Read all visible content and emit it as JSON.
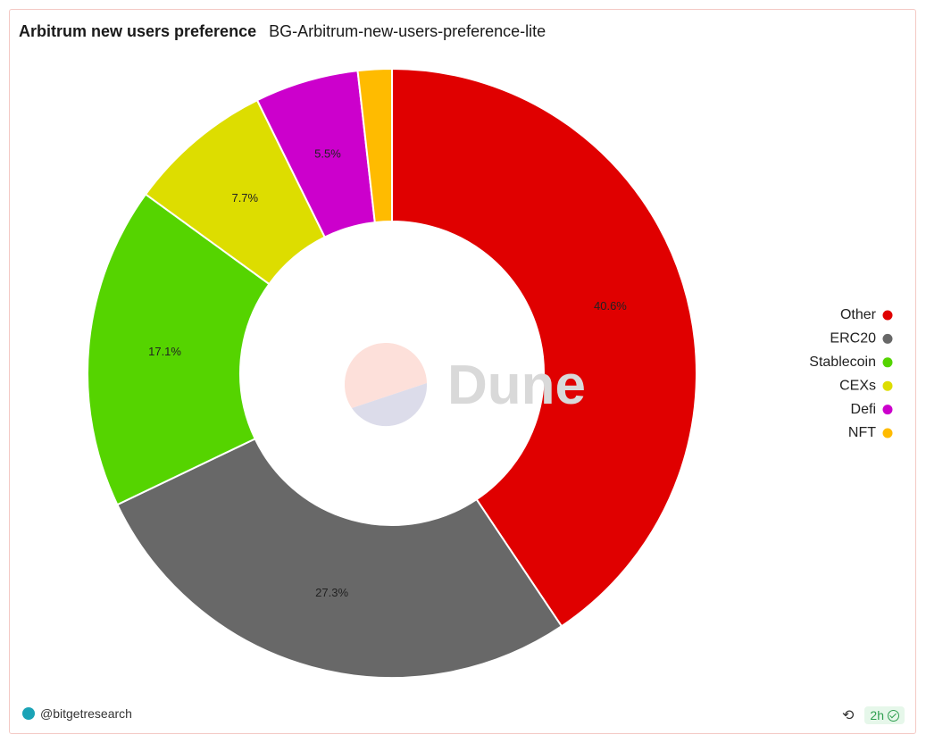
{
  "header": {
    "title": "Arbitrum new users preference",
    "query_name": "BG-Arbitrum-new-users-preference-lite"
  },
  "chart_data": {
    "type": "pie",
    "donut": true,
    "categories": [
      "Other",
      "ERC20",
      "Stablecoin",
      "CEXs",
      "Defi",
      "NFT"
    ],
    "values": [
      40.6,
      27.3,
      17.1,
      7.7,
      5.5,
      1.8
    ],
    "labels": [
      "40.6%",
      "27.3%",
      "17.1%",
      "7.7%",
      "5.5%",
      ""
    ],
    "colors": [
      "#e00000",
      "#686868",
      "#55d400",
      "#dddd00",
      "#cc00cc",
      "#ffbb00"
    ],
    "legend_placement": "right"
  },
  "watermark": {
    "text": "Dune"
  },
  "footer": {
    "author": "@bitgetresearch",
    "freshness": "2h",
    "refresh_icon": "refresh-icon"
  }
}
